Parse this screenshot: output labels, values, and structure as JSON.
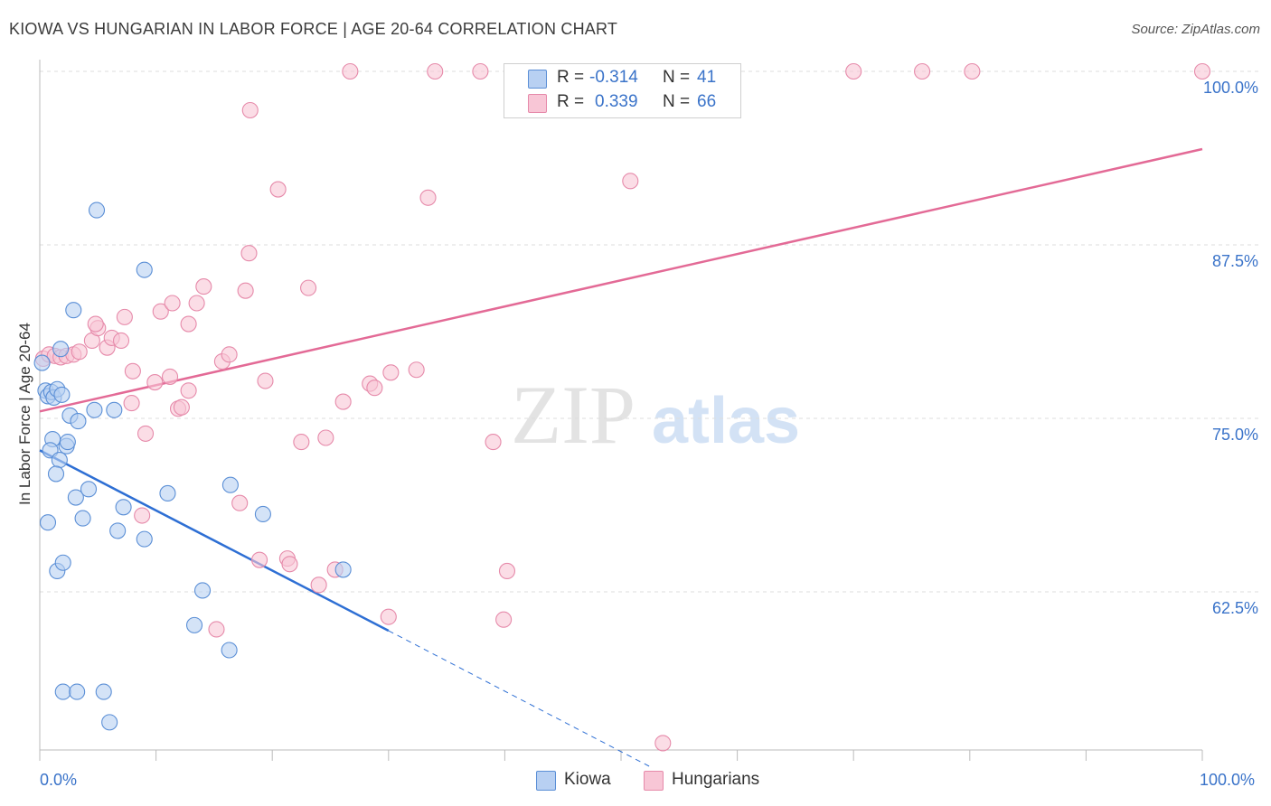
{
  "header": {
    "title": "KIOWA VS HUNGARIAN IN LABOR FORCE | AGE 20-64 CORRELATION CHART",
    "source": "Source: ZipAtlas.com"
  },
  "colors": {
    "kiowa_fill": "#b8d0f2",
    "kiowa_stroke": "#5b8fd6",
    "kiowa_line": "#2e6fd4",
    "hungarian_fill": "#f8c6d6",
    "hungarian_stroke": "#e68aaa",
    "hungarian_line": "#e36a96",
    "axis_label": "#3a73c9",
    "grid": "#dddddd"
  },
  "legend_top": {
    "kiowa": {
      "r_label": "R =",
      "r_value": "-0.314",
      "n_label": "N =",
      "n_value": "41"
    },
    "hungarian": {
      "r_label": "R =",
      "r_value": "0.339",
      "n_label": "N =",
      "n_value": "66"
    }
  },
  "legend_bottom": {
    "kiowa": "Kiowa",
    "hungarian": "Hungarians"
  },
  "watermark": {
    "zip": "ZIP",
    "atlas": "atlas"
  },
  "chart_data": {
    "type": "scatter",
    "title": "KIOWA VS HUNGARIAN IN LABOR FORCE | AGE 20-64 CORRELATION CHART",
    "xlabel": "",
    "ylabel": "In Labor Force | Age 20-64",
    "xlim": [
      0,
      100
    ],
    "ylim": [
      50.5,
      100.5
    ],
    "x_tick_labels": [
      "0.0%",
      "100.0%"
    ],
    "y_ticks": [
      62.5,
      75.0,
      87.5,
      100.0
    ],
    "y_tick_labels": [
      "62.5%",
      "75.0%",
      "87.5%",
      "100.0%"
    ],
    "grid": true,
    "series": [
      {
        "name": "Kiowa",
        "points": [
          [
            0.2,
            79.0
          ],
          [
            0.5,
            77.0
          ],
          [
            0.7,
            76.6
          ],
          [
            1.0,
            76.9
          ],
          [
            1.2,
            76.5
          ],
          [
            1.5,
            77.1
          ],
          [
            1.9,
            76.7
          ],
          [
            1.1,
            73.5
          ],
          [
            0.9,
            72.7
          ],
          [
            2.3,
            73.0
          ],
          [
            2.4,
            73.3
          ],
          [
            1.7,
            72.0
          ],
          [
            1.4,
            71.0
          ],
          [
            2.6,
            75.2
          ],
          [
            3.3,
            74.8
          ],
          [
            4.7,
            75.6
          ],
          [
            6.4,
            75.6
          ],
          [
            4.9,
            90.0
          ],
          [
            9.0,
            85.7
          ],
          [
            2.9,
            82.8
          ],
          [
            3.1,
            69.3
          ],
          [
            4.2,
            69.9
          ],
          [
            0.7,
            67.5
          ],
          [
            3.7,
            67.8
          ],
          [
            7.2,
            68.6
          ],
          [
            6.7,
            66.9
          ],
          [
            9.0,
            66.3
          ],
          [
            11.0,
            69.6
          ],
          [
            16.4,
            70.2
          ],
          [
            19.2,
            68.1
          ],
          [
            1.5,
            64.0
          ],
          [
            2.0,
            64.6
          ],
          [
            14.0,
            62.6
          ],
          [
            13.3,
            60.1
          ],
          [
            16.3,
            58.3
          ],
          [
            26.1,
            64.1
          ],
          [
            2.0,
            55.3
          ],
          [
            3.2,
            55.3
          ],
          [
            5.5,
            55.3
          ],
          [
            6.0,
            53.1
          ],
          [
            1.8,
            80.0
          ]
        ],
        "trend": {
          "x": [
            0,
            30
          ],
          "y": [
            72.7,
            59.7
          ],
          "dashed_extension": {
            "x": [
              30,
              52.5
            ],
            "y": [
              59.7,
              49.9
            ]
          }
        }
      },
      {
        "name": "Hungarians",
        "points": [
          [
            0.3,
            79.3
          ],
          [
            0.8,
            79.6
          ],
          [
            1.3,
            79.5
          ],
          [
            1.8,
            79.4
          ],
          [
            2.3,
            79.5
          ],
          [
            2.9,
            79.6
          ],
          [
            3.4,
            79.8
          ],
          [
            4.5,
            80.6
          ],
          [
            5.0,
            81.5
          ],
          [
            5.8,
            80.1
          ],
          [
            6.2,
            80.8
          ],
          [
            7.0,
            80.6
          ],
          [
            4.8,
            81.8
          ],
          [
            7.3,
            82.3
          ],
          [
            10.4,
            82.7
          ],
          [
            11.4,
            83.3
          ],
          [
            13.5,
            83.3
          ],
          [
            14.1,
            84.5
          ],
          [
            12.8,
            81.8
          ],
          [
            17.7,
            84.2
          ],
          [
            18.0,
            86.9
          ],
          [
            23.1,
            84.4
          ],
          [
            8.0,
            78.4
          ],
          [
            9.9,
            77.6
          ],
          [
            11.2,
            78.0
          ],
          [
            12.8,
            77.0
          ],
          [
            15.7,
            79.1
          ],
          [
            16.3,
            79.6
          ],
          [
            19.4,
            77.7
          ],
          [
            7.9,
            76.1
          ],
          [
            11.9,
            75.7
          ],
          [
            12.2,
            75.8
          ],
          [
            9.1,
            73.9
          ],
          [
            22.5,
            73.3
          ],
          [
            24.6,
            73.6
          ],
          [
            26.1,
            76.2
          ],
          [
            28.4,
            77.5
          ],
          [
            28.8,
            77.2
          ],
          [
            30.2,
            78.3
          ],
          [
            32.4,
            78.5
          ],
          [
            39.0,
            73.3
          ],
          [
            17.2,
            68.9
          ],
          [
            8.8,
            68.0
          ],
          [
            18.9,
            64.8
          ],
          [
            21.3,
            64.9
          ],
          [
            21.5,
            64.5
          ],
          [
            24.0,
            63.0
          ],
          [
            25.4,
            64.1
          ],
          [
            40.2,
            64.0
          ],
          [
            39.9,
            60.5
          ],
          [
            30.0,
            60.7
          ],
          [
            15.2,
            59.8
          ],
          [
            53.6,
            51.6
          ],
          [
            18.1,
            97.2
          ],
          [
            20.5,
            91.5
          ],
          [
            33.4,
            90.9
          ],
          [
            50.8,
            92.1
          ],
          [
            26.7,
            100.0
          ],
          [
            34.0,
            100.0
          ],
          [
            37.9,
            100.0
          ],
          [
            54.7,
            100.0
          ],
          [
            56.7,
            100.0
          ],
          [
            70.0,
            100.0
          ],
          [
            75.9,
            100.0
          ],
          [
            80.2,
            100.0
          ],
          [
            100.0,
            100.0
          ]
        ],
        "trend": {
          "x": [
            0,
            100
          ],
          "y": [
            75.5,
            94.4
          ]
        }
      }
    ]
  }
}
